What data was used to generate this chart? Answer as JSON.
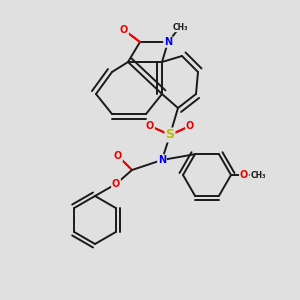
{
  "bg_color": "#e0e0e0",
  "bond_color": "#1a1a1a",
  "bond_width": 1.4,
  "dbo": 0.01,
  "atom_colors": {
    "N": "#0000ee",
    "O": "#ee0000",
    "S": "#bbbb00",
    "C": "#1a1a1a"
  },
  "font_size": 7.0
}
